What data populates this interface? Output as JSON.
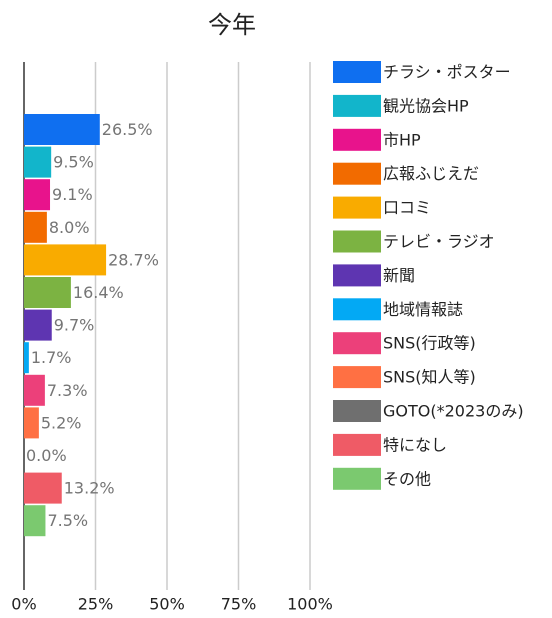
{
  "chart_data": {
    "type": "bar",
    "orientation": "horizontal",
    "title": "今年",
    "categories": [
      "チラシ・ポスター",
      "観光協会HP",
      "市HP",
      "広報ふじえだ",
      "口コミ",
      "テレビ・ラジオ",
      "新聞",
      "地域情報誌",
      "SNS(行政等)",
      "SNS(知人等)",
      "GOTO(*2023のみ)",
      "特になし",
      "その他"
    ],
    "values": [
      26.5,
      9.5,
      9.1,
      8.0,
      28.7,
      16.4,
      9.7,
      1.7,
      7.3,
      5.2,
      0.0,
      13.2,
      7.5
    ],
    "value_labels": [
      "26.5%",
      "9.5%",
      "9.1%",
      "8.0%",
      "28.7%",
      "16.4%",
      "9.7%",
      "1.7%",
      "7.3%",
      "5.2%",
      "0.0%",
      "13.2%",
      "7.5%"
    ],
    "colors": [
      "#0f6ff0",
      "#12b5cb",
      "#e8138c",
      "#f26b00",
      "#f9ab00",
      "#7cb342",
      "#5e35b1",
      "#03a9f4",
      "#ec407a",
      "#ff7043",
      "#6f6f6f",
      "#ef5b66",
      "#7bc96f"
    ],
    "xlim": [
      0,
      100
    ],
    "xticks": [
      {
        "value": 0,
        "label": "0%"
      },
      {
        "value": 25,
        "label": "25%"
      },
      {
        "value": 50,
        "label": "50%"
      },
      {
        "value": 75,
        "label": "75%"
      },
      {
        "value": 100,
        "label": "100%"
      }
    ],
    "grid": true,
    "legend": "right"
  }
}
